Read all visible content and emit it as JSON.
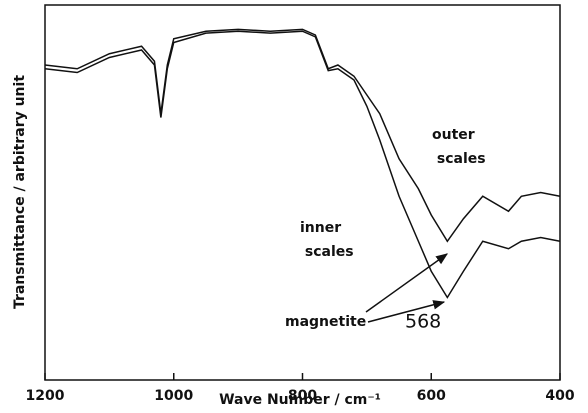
{
  "chart_data": {
    "type": "line",
    "x_label": "Wave Number / cm⁻¹",
    "y_label": "Transmittance / arbitrary unit",
    "x": [
      1200,
      1150,
      1100,
      1050,
      1030,
      1020,
      1010,
      1000,
      950,
      900,
      850,
      800,
      780,
      760,
      745,
      720,
      700,
      680,
      650,
      620,
      600,
      575,
      550,
      520,
      480,
      460,
      430,
      400
    ],
    "series": [
      {
        "name": "outer scales",
        "color": "#111111",
        "values": [
          84,
          83,
          87,
          89,
          85,
          71,
          84,
          91,
          93,
          93.5,
          93,
          93.5,
          92,
          83,
          84,
          81,
          76,
          71,
          59,
          51,
          44,
          37,
          43,
          49,
          45,
          49,
          50,
          49
        ]
      },
      {
        "name": "inner scales",
        "color": "#111111",
        "values": [
          83,
          82,
          86,
          88,
          84,
          70,
          83,
          90,
          92.5,
          93,
          92.5,
          93,
          91.5,
          82.5,
          83,
          80,
          73,
          64,
          49,
          37,
          29,
          22,
          29,
          37,
          35,
          37,
          38,
          37
        ]
      }
    ],
    "annotations": [
      "magnetite",
      "568"
    ],
    "xlim": [
      1200,
      400
    ],
    "ylim": [
      0,
      100
    ],
    "xticks": [
      1200,
      1000,
      800,
      600,
      400
    ]
  }
}
